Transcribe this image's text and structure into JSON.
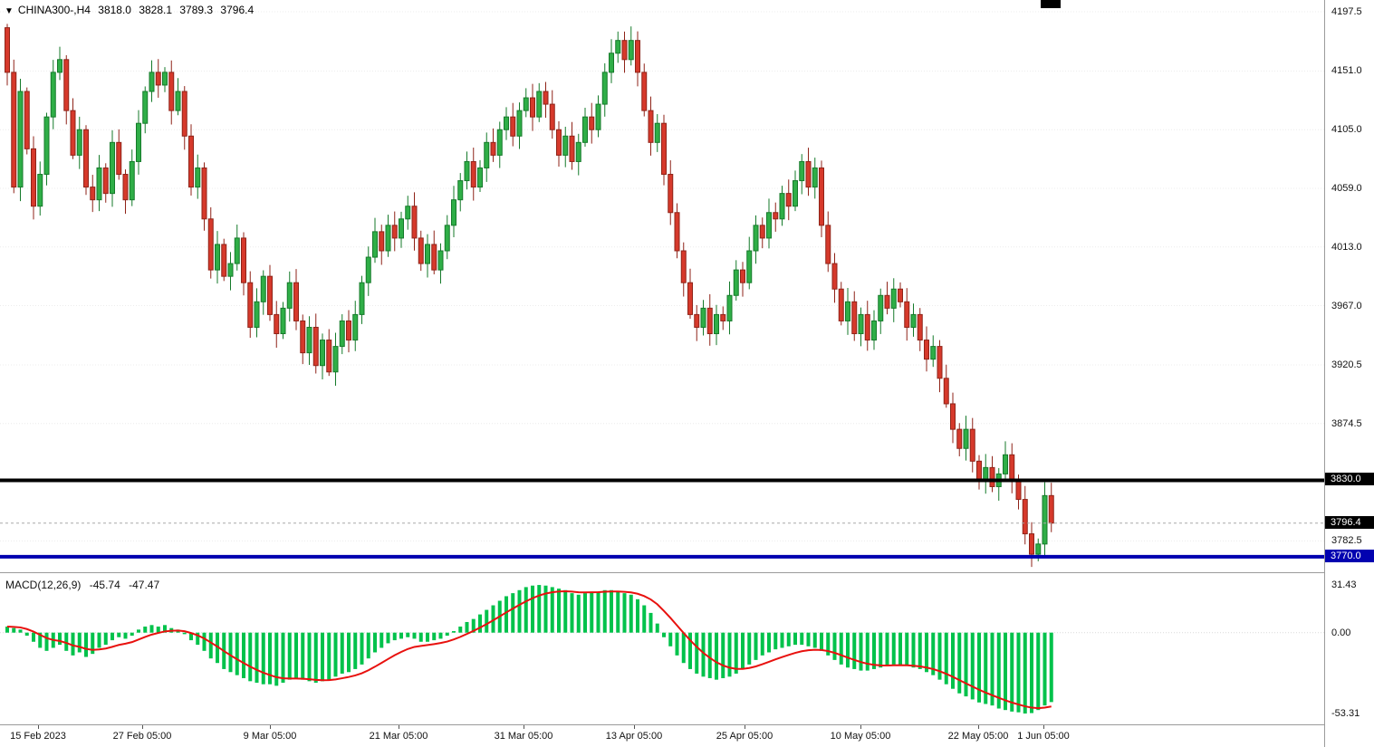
{
  "header": {
    "symbol": "CHINA300-,H4",
    "open": "3818.0",
    "high": "3828.1",
    "low": "3789.3",
    "close": "3796.4"
  },
  "price_axis": {
    "labels": [
      "4197.5",
      "4151.0",
      "4105.0",
      "4059.0",
      "4013.0",
      "3967.0",
      "3920.5",
      "3874.5",
      "3782.5"
    ],
    "tags": [
      {
        "text": "3830.0",
        "style": "black"
      },
      {
        "text": "3796.4",
        "style": "black"
      },
      {
        "text": "3770.0",
        "style": "blue"
      }
    ]
  },
  "macd_panel": {
    "label": "MACD(12,26,9)",
    "macd_value": "-45.74",
    "signal_value": "-47.47",
    "axis_labels": [
      "31.43",
      "0.00",
      "-53.31"
    ]
  },
  "time_axis": {
    "labels": [
      "15 Feb 2023",
      "27 Feb 05:00",
      "9 Mar 05:00",
      "21 Mar 05:00",
      "31 Mar 05:00",
      "13 Apr 05:00",
      "25 Apr 05:00",
      "10 May 05:00",
      "22 May 05:00",
      "1 Jun 05:00"
    ]
  },
  "colors": {
    "up_fill": "#2fae47",
    "up_stroke": "#157a2a",
    "down_fill": "#d6392b",
    "down_stroke": "#8f2318",
    "histogram": "#00c24b",
    "signal_line": "#e8110e",
    "grid": "#ececec",
    "black_line": "#000000",
    "blue_line": "#0202b0",
    "bid_line": "#a8a8a8"
  },
  "chart_data": [
    {
      "type": "candlestick",
      "title": "CHINA300-,H4",
      "ylim": [
        3760,
        4205
      ],
      "first_open": 4185,
      "closes": [
        4150,
        4060,
        4135,
        4090,
        4045,
        4070,
        4115,
        4150,
        4160,
        4120,
        4085,
        4105,
        4060,
        4050,
        4075,
        4055,
        4095,
        4070,
        4050,
        4080,
        4110,
        4135,
        4150,
        4140,
        4150,
        4120,
        4135,
        4100,
        4060,
        4075,
        4035,
        3995,
        4015,
        3990,
        4000,
        4020,
        3985,
        3950,
        3970,
        3990,
        3960,
        3945,
        3965,
        3985,
        3955,
        3930,
        3950,
        3920,
        3940,
        3915,
        3935,
        3955,
        3940,
        3960,
        3985,
        4005,
        4025,
        4010,
        4030,
        4020,
        4035,
        4045,
        4020,
        4000,
        4015,
        3995,
        4010,
        4030,
        4050,
        4065,
        4080,
        4060,
        4075,
        4095,
        4085,
        4105,
        4115,
        4100,
        4120,
        4130,
        4115,
        4135,
        4125,
        4105,
        4085,
        4100,
        4080,
        4095,
        4115,
        4105,
        4125,
        4150,
        4165,
        4175,
        4160,
        4175,
        4150,
        4120,
        4095,
        4110,
        4070,
        4040,
        4010,
        3985,
        3960,
        3950,
        3965,
        3945,
        3960,
        3955,
        3975,
        3995,
        3985,
        4010,
        4030,
        4020,
        4040,
        4035,
        4055,
        4045,
        4065,
        4080,
        4060,
        4075,
        4030,
        4000,
        3980,
        3955,
        3970,
        3945,
        3960,
        3940,
        3955,
        3975,
        3965,
        3980,
        3970,
        3950,
        3960,
        3940,
        3925,
        3935,
        3910,
        3890,
        3870,
        3855,
        3870,
        3845,
        3830,
        3840,
        3825,
        3835,
        3850,
        3830,
        3815,
        3788,
        3772,
        3780,
        3818,
        3796.4
      ],
      "last_candle_ohlc": {
        "open": 3818.0,
        "high": 3828.1,
        "low": 3789.3,
        "close": 3796.4
      },
      "hlines": [
        {
          "value": 3830.0,
          "color": "#000000",
          "width": 4,
          "dash": ""
        },
        {
          "value": 3796.4,
          "color": "#a8a8a8",
          "width": 1,
          "dash": "3,3"
        },
        {
          "value": 3770.0,
          "color": "#0202b0",
          "width": 4,
          "dash": ""
        }
      ]
    },
    {
      "type": "bar",
      "title": "MACD(12,26,9)",
      "values": [
        4,
        3,
        2,
        -2,
        -6,
        -10,
        -12,
        -10,
        -8,
        -12,
        -15,
        -13,
        -16,
        -14,
        -10,
        -8,
        -5,
        -3,
        -4,
        -2,
        2,
        4,
        5,
        4,
        5,
        3,
        2,
        -1,
        -5,
        -8,
        -12,
        -17,
        -20,
        -24,
        -26,
        -28,
        -30,
        -32,
        -33,
        -34,
        -34,
        -35,
        -33,
        -31,
        -30,
        -31,
        -32,
        -33,
        -32,
        -31,
        -29,
        -27,
        -26,
        -24,
        -21,
        -17,
        -13,
        -10,
        -7,
        -5,
        -4,
        -3,
        -4,
        -6,
        -6,
        -5,
        -4,
        -2,
        1,
        4,
        7,
        9,
        12,
        15,
        18,
        21,
        24,
        26,
        28,
        30,
        31,
        31.4,
        31,
        30,
        29,
        28,
        26,
        25,
        26,
        27,
        27,
        28,
        28,
        27,
        26,
        25,
        22,
        18,
        13,
        6,
        -3,
        -9,
        -15,
        -20,
        -24,
        -27,
        -29,
        -30,
        -31,
        -30,
        -29,
        -27,
        -24,
        -21,
        -18,
        -15,
        -13,
        -11,
        -10,
        -9,
        -8,
        -8,
        -9,
        -10,
        -12,
        -15,
        -18,
        -21,
        -23,
        -24,
        -25,
        -25,
        -24,
        -23,
        -22,
        -21,
        -21,
        -22,
        -23,
        -24,
        -26,
        -28,
        -31,
        -34,
        -37,
        -40,
        -42,
        -44,
        -46,
        -47,
        -48,
        -50,
        -51,
        -52,
        -52.5,
        -53.3,
        -53,
        -51,
        -48,
        -45.74
      ],
      "signal": "ema9-of-values",
      "current_macd": -45.74,
      "current_signal": -47.47,
      "ylim": [
        -56,
        35
      ],
      "axis_ticks": [
        31.43,
        0.0,
        -53.31
      ]
    }
  ]
}
